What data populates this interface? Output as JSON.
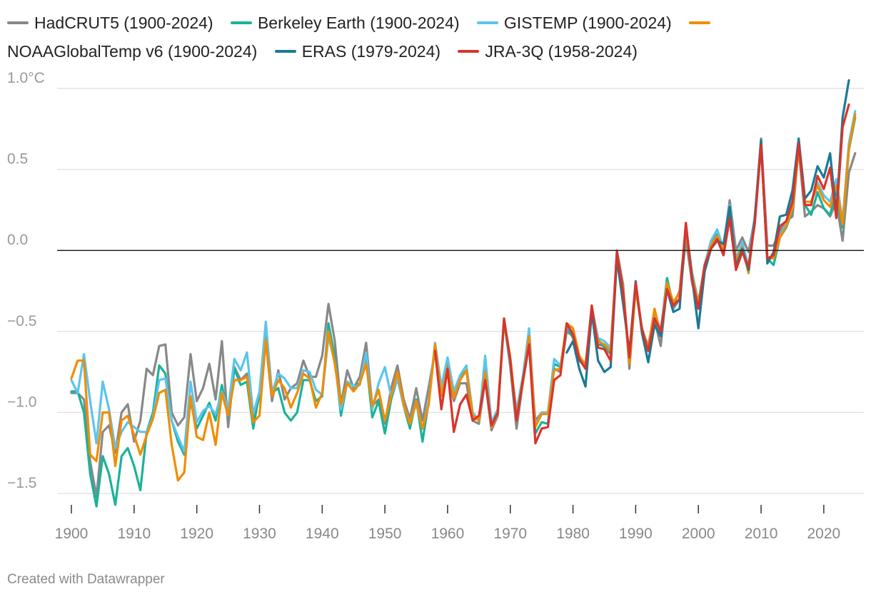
{
  "credit": "Created with Datawrapper",
  "chart_data": {
    "type": "line",
    "title": "",
    "xlabel": "",
    "ylabel": "",
    "xlim": [
      1900,
      2024
    ],
    "ylim": [
      -1.5,
      1.0
    ],
    "y_ticks": [
      {
        "value": 1.0,
        "label": "1.0°C"
      },
      {
        "value": 0.5,
        "label": "0.5"
      },
      {
        "value": 0.0,
        "label": "0.0"
      },
      {
        "value": -0.5,
        "label": "−0.5"
      },
      {
        "value": -1.0,
        "label": "−1.0"
      },
      {
        "value": -1.5,
        "label": "−1.5"
      }
    ],
    "x_ticks": [
      1900,
      1910,
      1920,
      1930,
      1940,
      1950,
      1960,
      1970,
      1980,
      1990,
      2000,
      2010,
      2020
    ],
    "grid": true,
    "legend_position": "top",
    "series": [
      {
        "name": "HadCRUT5 (1900-2024)",
        "color": "#888888",
        "start": 1900,
        "values": [
          -0.88,
          -0.88,
          -0.92,
          -1.3,
          -1.52,
          -1.12,
          -1.08,
          -1.25,
          -1.0,
          -0.95,
          -1.18,
          -1.05,
          -0.73,
          -0.77,
          -0.59,
          -0.58,
          -1.0,
          -1.08,
          -1.03,
          -0.64,
          -0.93,
          -0.85,
          -0.7,
          -0.92,
          -0.56,
          -1.09,
          -0.72,
          -0.8,
          -0.76,
          -1.05,
          -0.9,
          -0.56,
          -0.93,
          -0.74,
          -0.92,
          -0.85,
          -0.82,
          -0.68,
          -0.78,
          -0.78,
          -0.65,
          -0.33,
          -0.56,
          -0.95,
          -0.74,
          -0.85,
          -0.78,
          -0.57,
          -0.96,
          -0.92,
          -1.07,
          -0.85,
          -0.71,
          -0.92,
          -1.04,
          -0.85,
          -1.05,
          -0.84,
          -0.62,
          -0.88,
          -0.76,
          -0.93,
          -0.82,
          -0.82,
          -1.05,
          -1.07,
          -0.8,
          -1.11,
          -1.02,
          -0.43,
          -0.72,
          -1.1,
          -0.82,
          -0.58,
          -1.05,
          -1.0,
          -1.0,
          -0.73,
          -0.75,
          -0.5,
          -0.53,
          -0.65,
          -0.72,
          -0.37,
          -0.55,
          -0.6,
          -0.64,
          0.0,
          -0.21,
          -0.73,
          -0.22,
          -0.5,
          -0.62,
          -0.43,
          -0.59,
          -0.22,
          -0.36,
          -0.3,
          0.07,
          -0.2,
          -0.36,
          -0.12,
          0.02,
          0.07,
          0.02,
          0.31,
          -0.0,
          0.08,
          -0.01,
          0.2,
          0.69,
          0.03,
          0.03,
          0.12,
          0.18,
          0.21,
          0.63,
          0.21,
          0.24,
          0.28,
          0.26,
          0.21,
          0.3,
          0.06,
          0.48,
          0.6
        ]
      },
      {
        "name": "Berkeley Earth (1900-2024)",
        "color": "#1ab399",
        "start": 1900,
        "values": [
          -0.87,
          -0.87,
          -1.0,
          -1.38,
          -1.58,
          -1.27,
          -1.38,
          -1.57,
          -1.27,
          -1.22,
          -1.33,
          -1.48,
          -1.12,
          -1.0,
          -0.71,
          -0.76,
          -1.05,
          -1.18,
          -1.26,
          -0.93,
          -1.1,
          -1.02,
          -0.94,
          -1.05,
          -0.83,
          -1.03,
          -0.73,
          -0.83,
          -0.81,
          -1.1,
          -0.87,
          -0.5,
          -0.88,
          -0.85,
          -1.0,
          -1.05,
          -1.0,
          -0.8,
          -0.8,
          -0.93,
          -0.9,
          -0.45,
          -0.66,
          -1.02,
          -0.81,
          -0.84,
          -0.82,
          -0.68,
          -1.03,
          -0.93,
          -1.13,
          -0.92,
          -0.79,
          -0.96,
          -1.1,
          -0.92,
          -1.18,
          -0.93,
          -0.58,
          -0.85,
          -0.7,
          -0.89,
          -0.78,
          -0.74,
          -1.03,
          -1.04,
          -0.7,
          -1.07,
          -1.0,
          -0.44,
          -0.7,
          -1.04,
          -0.82,
          -0.55,
          -1.13,
          -1.06,
          -1.07,
          -0.7,
          -0.72,
          -0.47,
          -0.54,
          -0.68,
          -0.72,
          -0.38,
          -0.58,
          -0.59,
          -0.63,
          -0.04,
          -0.26,
          -0.69,
          -0.24,
          -0.48,
          -0.6,
          -0.4,
          -0.5,
          -0.17,
          -0.34,
          -0.25,
          0.14,
          -0.14,
          -0.32,
          -0.09,
          0.05,
          0.1,
          0.0,
          0.22,
          -0.09,
          0.0,
          -0.13,
          0.2,
          0.66,
          -0.05,
          -0.09,
          0.08,
          0.14,
          0.25,
          0.66,
          0.28,
          0.22,
          0.36,
          0.26,
          0.22,
          0.37,
          0.14,
          0.62,
          0.82
        ]
      },
      {
        "name": "GISTEMP (1900-2024)",
        "color": "#5bc4ee",
        "start": 1900,
        "values": [
          -0.8,
          -0.88,
          -0.64,
          -0.93,
          -1.19,
          -0.81,
          -0.98,
          -1.22,
          -1.12,
          -1.06,
          -1.09,
          -1.12,
          -1.12,
          -1.03,
          -0.8,
          -0.79,
          -1.05,
          -1.15,
          -1.24,
          -0.81,
          -1.06,
          -0.99,
          -0.96,
          -1.01,
          -0.87,
          -0.98,
          -0.67,
          -0.74,
          -0.63,
          -1.01,
          -0.87,
          -0.44,
          -0.88,
          -0.76,
          -0.79,
          -0.85,
          -0.85,
          -0.74,
          -0.75,
          -0.86,
          -0.89,
          -0.53,
          -0.69,
          -0.98,
          -0.81,
          -0.84,
          -0.83,
          -0.63,
          -0.98,
          -0.82,
          -0.72,
          -0.9,
          -0.79,
          -0.96,
          -1.06,
          -0.95,
          -1.1,
          -0.93,
          -0.57,
          -0.84,
          -0.66,
          -0.87,
          -0.77,
          -0.71,
          -1.0,
          -1.05,
          -0.65,
          -1.06,
          -0.98,
          -0.42,
          -0.69,
          -0.99,
          -0.78,
          -0.48,
          -1.08,
          -1.0,
          -1.0,
          -0.67,
          -0.71,
          -0.47,
          -0.5,
          -0.66,
          -0.7,
          -0.35,
          -0.54,
          -0.56,
          -0.6,
          -0.03,
          -0.25,
          -0.68,
          -0.21,
          -0.5,
          -0.58,
          -0.39,
          -0.49,
          -0.2,
          -0.32,
          -0.27,
          0.12,
          -0.15,
          -0.33,
          -0.09,
          0.06,
          0.13,
          0.01,
          0.28,
          -0.05,
          0.05,
          -0.1,
          0.22,
          0.66,
          -0.05,
          -0.04,
          0.1,
          0.16,
          0.33,
          0.66,
          0.3,
          0.3,
          0.42,
          0.34,
          0.3,
          0.44,
          0.18,
          0.66,
          0.86
        ]
      },
      {
        "name": "NOAAGlobalTemp v6 (1900-2024)",
        "color": "#f28c00",
        "start": 1900,
        "values": [
          -0.79,
          -0.68,
          -0.68,
          -1.26,
          -1.3,
          -1.0,
          -1.0,
          -1.33,
          -1.05,
          -1.02,
          -1.14,
          -1.26,
          -1.14,
          -1.04,
          -0.88,
          -0.86,
          -1.2,
          -1.42,
          -1.37,
          -0.9,
          -1.15,
          -1.17,
          -1.0,
          -1.2,
          -0.88,
          -1.02,
          -0.8,
          -0.8,
          -0.78,
          -1.06,
          -1.02,
          -0.55,
          -0.9,
          -0.8,
          -0.85,
          -0.97,
          -0.88,
          -0.76,
          -0.79,
          -0.97,
          -0.88,
          -0.5,
          -0.7,
          -0.95,
          -0.82,
          -0.87,
          -0.82,
          -0.7,
          -0.96,
          -0.86,
          -1.05,
          -0.9,
          -0.75,
          -0.95,
          -1.07,
          -0.93,
          -1.1,
          -0.95,
          -0.58,
          -0.9,
          -0.72,
          -0.91,
          -0.8,
          -0.74,
          -1.02,
          -1.05,
          -0.75,
          -1.09,
          -1.0,
          -0.43,
          -0.66,
          -1.03,
          -0.82,
          -0.53,
          -1.09,
          -1.01,
          -1.01,
          -0.74,
          -0.73,
          -0.45,
          -0.48,
          -0.65,
          -0.71,
          -0.39,
          -0.56,
          -0.58,
          -0.62,
          -0.04,
          -0.24,
          -0.7,
          -0.23,
          -0.49,
          -0.6,
          -0.36,
          -0.52,
          -0.2,
          -0.32,
          -0.26,
          0.12,
          -0.16,
          -0.34,
          -0.1,
          0.03,
          0.09,
          0.0,
          0.24,
          -0.06,
          0.02,
          -0.14,
          0.19,
          0.65,
          -0.04,
          -0.05,
          0.08,
          0.15,
          0.26,
          0.63,
          0.3,
          0.3,
          0.4,
          0.31,
          0.27,
          0.4,
          0.16,
          0.63,
          0.84
        ]
      },
      {
        "name": "ERAS (1979-2024)",
        "color": "#1a7a96",
        "start": 1979,
        "values": [
          -0.63,
          -0.56,
          -0.73,
          -0.84,
          -0.38,
          -0.68,
          -0.75,
          -0.72,
          -0.05,
          -0.33,
          -0.63,
          -0.19,
          -0.51,
          -0.69,
          -0.46,
          -0.53,
          -0.24,
          -0.38,
          -0.36,
          0.16,
          -0.17,
          -0.48,
          -0.13,
          0.01,
          0.06,
          0.04,
          0.27,
          -0.1,
          0.01,
          -0.12,
          0.2,
          0.68,
          -0.08,
          -0.01,
          0.21,
          0.22,
          0.37,
          0.69,
          0.32,
          0.37,
          0.52,
          0.45,
          0.6,
          0.23,
          0.82,
          1.05
        ]
      },
      {
        "name": "JRA-3Q (1958-2024)",
        "color": "#d9342b",
        "start": 1958,
        "values": [
          -0.62,
          -0.98,
          -0.73,
          -1.12,
          -0.95,
          -0.89,
          -1.05,
          -1.02,
          -0.8,
          -1.08,
          -1.0,
          -0.42,
          -0.68,
          -1.05,
          -0.8,
          -0.58,
          -1.19,
          -1.1,
          -1.09,
          -0.8,
          -0.77,
          -0.45,
          -0.52,
          -0.67,
          -0.73,
          -0.34,
          -0.6,
          -0.61,
          -0.68,
          -0.01,
          -0.26,
          -0.66,
          -0.2,
          -0.49,
          -0.62,
          -0.42,
          -0.5,
          -0.24,
          -0.34,
          -0.3,
          0.17,
          -0.18,
          -0.36,
          -0.09,
          0.01,
          0.07,
          -0.03,
          0.2,
          -0.12,
          -0.01,
          -0.1,
          0.17,
          0.65,
          -0.05,
          -0.03,
          0.15,
          0.18,
          0.3,
          0.66,
          0.28,
          0.28,
          0.46,
          0.38,
          0.51,
          0.2,
          0.76,
          0.9
        ]
      }
    ]
  }
}
